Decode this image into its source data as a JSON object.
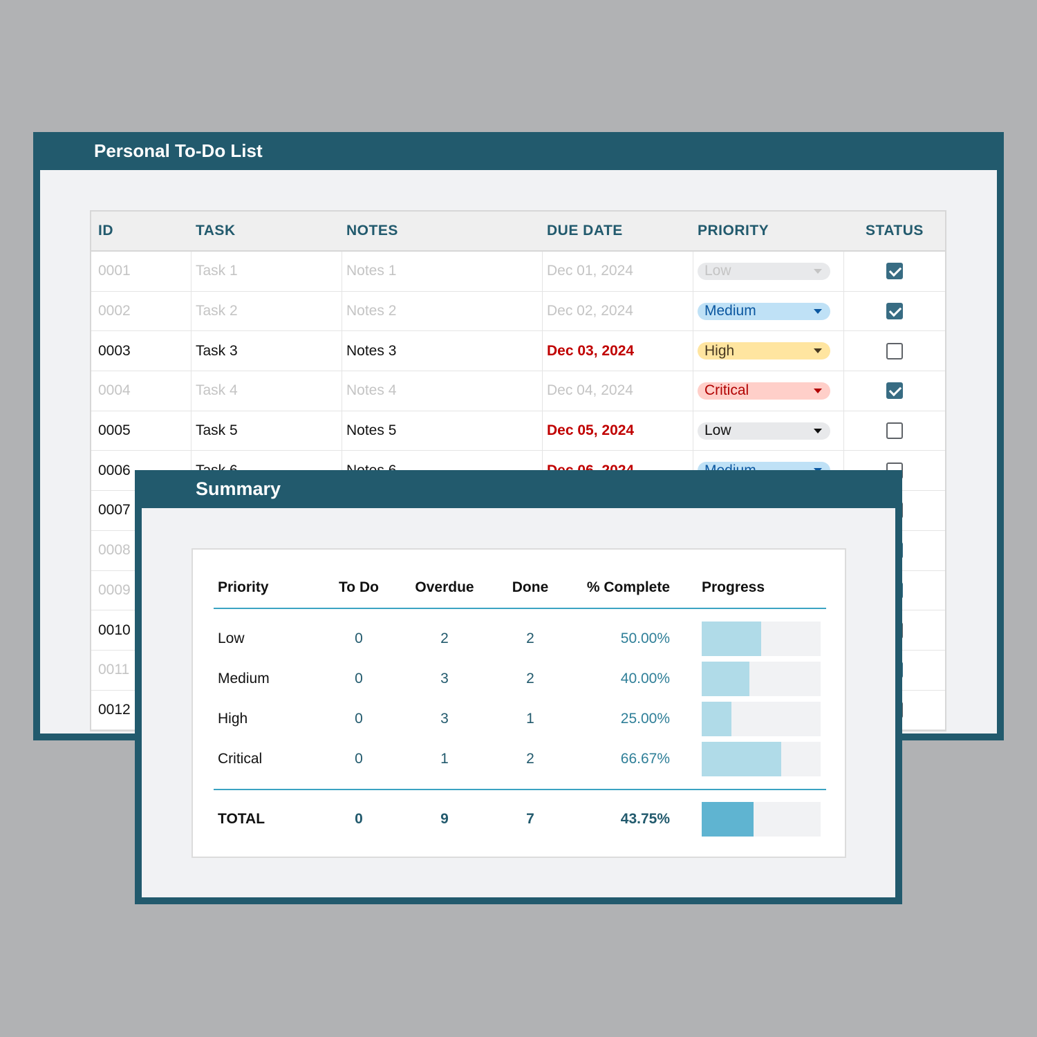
{
  "main_window": {
    "title": "Personal To-Do List",
    "columns": {
      "id": "ID",
      "task": "TASK",
      "notes": "NOTES",
      "due": "DUE DATE",
      "priority": "PRIORITY",
      "status": "STATUS"
    },
    "rows": [
      {
        "id": "0001",
        "task": "Task 1",
        "notes": "Notes 1",
        "due": "Dec 01, 2024",
        "priority": "Low",
        "done": true
      },
      {
        "id": "0002",
        "task": "Task 2",
        "notes": "Notes 2",
        "due": "Dec 02, 2024",
        "priority": "Medium",
        "done": true
      },
      {
        "id": "0003",
        "task": "Task 3",
        "notes": "Notes 3",
        "due": "Dec 03, 2024",
        "priority": "High",
        "done": false
      },
      {
        "id": "0004",
        "task": "Task 4",
        "notes": "Notes 4",
        "due": "Dec 04, 2024",
        "priority": "Critical",
        "done": true
      },
      {
        "id": "0005",
        "task": "Task 5",
        "notes": "Notes 5",
        "due": "Dec 05, 2024",
        "priority": "Low",
        "done": false
      },
      {
        "id": "0006",
        "task": "Task 6",
        "notes": "Notes 6",
        "due": "Dec 06, 2024",
        "priority": "Medium",
        "done": false
      },
      {
        "id": "0007",
        "task": "",
        "notes": "",
        "due": "",
        "priority": "",
        "done": false
      },
      {
        "id": "0008",
        "task": "",
        "notes": "",
        "due": "",
        "priority": "",
        "done": true
      },
      {
        "id": "0009",
        "task": "",
        "notes": "",
        "due": "",
        "priority": "",
        "done": true
      },
      {
        "id": "0010",
        "task": "",
        "notes": "",
        "due": "",
        "priority": "",
        "done": false
      },
      {
        "id": "0011",
        "task": "",
        "notes": "",
        "due": "",
        "priority": "",
        "done": true
      },
      {
        "id": "0012",
        "task": "",
        "notes": "",
        "due": "",
        "priority": "",
        "done": false
      }
    ]
  },
  "summary": {
    "title": "Summary",
    "headers": {
      "priority": "Priority",
      "todo": "To Do",
      "overdue": "Overdue",
      "done": "Done",
      "complete": "% Complete",
      "progress": "Progress"
    },
    "rows": [
      {
        "priority": "Low",
        "todo": "0",
        "overdue": "2",
        "done": "2",
        "complete": "50.00%",
        "progress": 0.5
      },
      {
        "priority": "Medium",
        "todo": "0",
        "overdue": "3",
        "done": "2",
        "complete": "40.00%",
        "progress": 0.4
      },
      {
        "priority": "High",
        "todo": "0",
        "overdue": "3",
        "done": "1",
        "complete": "25.00%",
        "progress": 0.25
      },
      {
        "priority": "Critical",
        "todo": "0",
        "overdue": "1",
        "done": "2",
        "complete": "66.67%",
        "progress": 0.6667
      }
    ],
    "total": {
      "label": "TOTAL",
      "todo": "0",
      "overdue": "9",
      "done": "7",
      "complete": "43.75%",
      "progress": 0.4375
    }
  }
}
